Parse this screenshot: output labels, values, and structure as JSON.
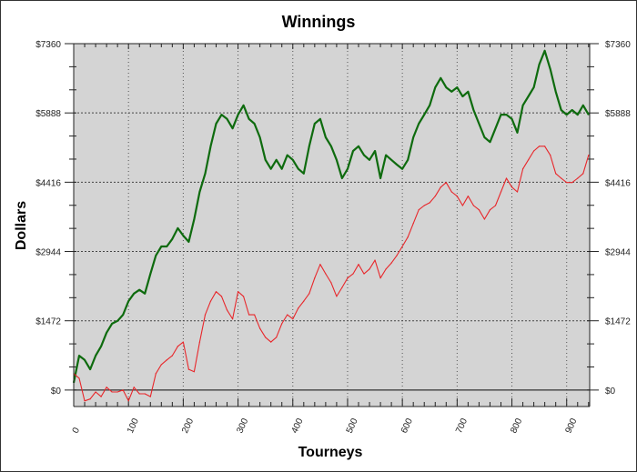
{
  "chart_data": {
    "type": "line",
    "title": "Winnings",
    "xlabel": "Tourneys",
    "ylabel": "Dollars",
    "xlim": [
      0,
      942
    ],
    "ylim": [
      -350,
      7360
    ],
    "x_ticks": [
      0,
      100,
      200,
      300,
      400,
      500,
      600,
      700,
      800,
      900
    ],
    "y_ticks": [
      0,
      1472,
      2944,
      4416,
      5888,
      7360
    ],
    "y_tick_labels": [
      "$0",
      "$1472",
      "$2944",
      "$4416",
      "$5888",
      "$7360"
    ],
    "grid": true,
    "legend": "none",
    "background": "#d4d4d4",
    "x": [
      0,
      10,
      20,
      30,
      40,
      50,
      60,
      70,
      80,
      90,
      100,
      110,
      120,
      130,
      140,
      150,
      160,
      170,
      180,
      190,
      200,
      210,
      220,
      230,
      240,
      250,
      260,
      270,
      280,
      290,
      300,
      310,
      320,
      330,
      340,
      350,
      360,
      370,
      380,
      390,
      400,
      410,
      420,
      430,
      440,
      450,
      460,
      470,
      480,
      490,
      500,
      510,
      520,
      530,
      540,
      550,
      560,
      570,
      580,
      590,
      600,
      610,
      620,
      630,
      640,
      650,
      660,
      670,
      680,
      690,
      700,
      710,
      720,
      730,
      740,
      750,
      760,
      770,
      780,
      790,
      800,
      810,
      820,
      830,
      840,
      850,
      860,
      870,
      880,
      890,
      900,
      910,
      920,
      930,
      940
    ],
    "series": [
      {
        "color": "#0e6b0e",
        "values": [
          155,
          730,
          640,
          440,
          730,
          930,
          1220,
          1410,
          1470,
          1600,
          1890,
          2050,
          2130,
          2050,
          2470,
          2860,
          3050,
          3050,
          3210,
          3440,
          3280,
          3150,
          3630,
          4210,
          4600,
          5180,
          5660,
          5850,
          5760,
          5560,
          5850,
          6050,
          5760,
          5660,
          5370,
          4890,
          4700,
          4890,
          4700,
          4990,
          4890,
          4700,
          4600,
          5180,
          5660,
          5760,
          5370,
          5180,
          4890,
          4500,
          4700,
          5080,
          5180,
          4990,
          4890,
          5080,
          4500,
          4990,
          4890,
          4790,
          4700,
          4890,
          5370,
          5660,
          5850,
          6050,
          6430,
          6630,
          6430,
          6340,
          6430,
          6240,
          6340,
          5950,
          5660,
          5370,
          5270,
          5560,
          5850,
          5850,
          5760,
          5470,
          6050,
          6240,
          6430,
          6920,
          7210,
          6820,
          6340,
          5950,
          5850,
          5950,
          5850,
          6050,
          5850
        ]
      },
      {
        "color": "#e8262a",
        "values": [
          350,
          250,
          -230,
          -190,
          -40,
          -140,
          60,
          -40,
          -40,
          0,
          -230,
          60,
          -80,
          -80,
          -140,
          350,
          540,
          640,
          730,
          930,
          1020,
          440,
          390,
          1020,
          1600,
          1890,
          2090,
          1990,
          1700,
          1510,
          2090,
          1990,
          1600,
          1600,
          1310,
          1120,
          1020,
          1120,
          1410,
          1600,
          1510,
          1740,
          1890,
          2050,
          2380,
          2670,
          2470,
          2280,
          1990,
          2180,
          2380,
          2470,
          2670,
          2470,
          2570,
          2760,
          2380,
          2570,
          2700,
          2860,
          3050,
          3250,
          3540,
          3830,
          3920,
          3980,
          4120,
          4310,
          4410,
          4210,
          4120,
          3920,
          4120,
          3920,
          3830,
          3630,
          3830,
          3920,
          4210,
          4500,
          4310,
          4210,
          4700,
          4890,
          5080,
          5180,
          5180,
          4990,
          4600,
          4500,
          4410,
          4410,
          4500,
          4600,
          4990
        ]
      }
    ]
  }
}
